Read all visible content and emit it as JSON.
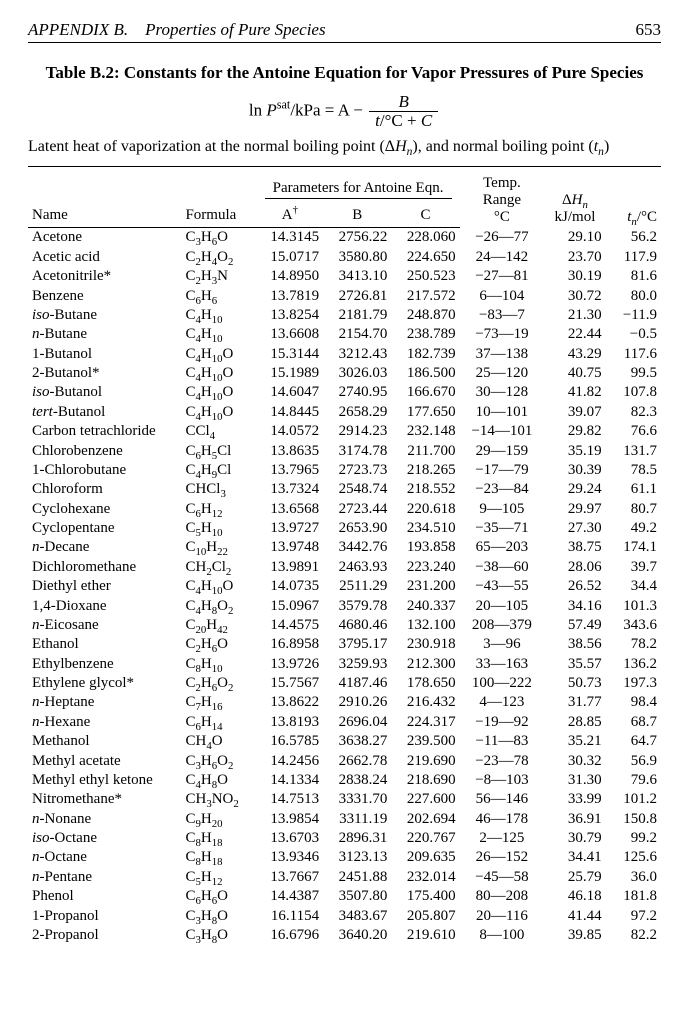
{
  "page": {
    "running_head_left": "APPENDIX B. Properties of Pure Species",
    "page_number": "653"
  },
  "table": {
    "title": "Table B.2: Constants for the Antoine Equation for Vapor Pressures of Pure Species",
    "equation_html": "ln <span class='ital'>P</span><sup>sat</sup>/kPa = A &minus; <span class='frac'><span class='num'><span class='ital'>B</span></span><span class='den'><span class='ital'>t</span>/&deg;C + <span class='ital'>C</span></span></span>",
    "preline_html": "Latent heat of vaporization at the normal boiling point (&Delta;<span class='ital'>H</span><sub><span class='ital'>n</span></sub>), and normal boiling point (<span class='ital'>t</span><sub><span class='ital'>n</span></sub>)",
    "group_header": "Parameters for Antoine Eqn.",
    "columns": {
      "name": "Name",
      "formula": "Formula",
      "A_html": "A<sup>&dagger;</sup>",
      "B": "B",
      "C": "C",
      "range_html": "Temp. Range<br>&deg;C",
      "dH_html": "&Delta;<span class='ital'>H</span><sub><span class='ital'>n</span></sub><br>kJ/mol",
      "tn_html": "<span class='ital'>t</span><sub><span class='ital'>n</span></sub>/&deg;C"
    },
    "rows": [
      {
        "name": "Acetone",
        "formula_html": "C<sub>3</sub>H<sub>6</sub>O",
        "A": "14.3145",
        "B": "2756.22",
        "C": "228.060",
        "range": "−26—77",
        "dH": "29.10",
        "tn": "56.2"
      },
      {
        "name": "Acetic acid",
        "formula_html": "C<sub>2</sub>H<sub>4</sub>O<sub>2</sub>",
        "A": "15.0717",
        "B": "3580.80",
        "C": "224.650",
        "range": "24—142",
        "dH": "23.70",
        "tn": "117.9"
      },
      {
        "name": "Acetonitrile*",
        "formula_html": "C<sub>2</sub>H<sub>3</sub>N",
        "A": "14.8950",
        "B": "3413.10",
        "C": "250.523",
        "range": "−27—81",
        "dH": "30.19",
        "tn": "81.6"
      },
      {
        "name": "Benzene",
        "formula_html": "C<sub>6</sub>H<sub>6</sub>",
        "A": "13.7819",
        "B": "2726.81",
        "C": "217.572",
        "range": "6—104",
        "dH": "30.72",
        "tn": "80.0"
      },
      {
        "name_html": "<span class='ital'>iso</span>-Butane",
        "formula_html": "C<sub>4</sub>H<sub>10</sub>",
        "A": "13.8254",
        "B": "2181.79",
        "C": "248.870",
        "range": "−83—7",
        "dH": "21.30",
        "tn": "−11.9"
      },
      {
        "name_html": "<span class='ital'>n</span>-Butane",
        "formula_html": "C<sub>4</sub>H<sub>10</sub>",
        "A": "13.6608",
        "B": "2154.70",
        "C": "238.789",
        "range": "−73—19",
        "dH": "22.44",
        "tn": "−0.5"
      },
      {
        "name": "1-Butanol",
        "formula_html": "C<sub>4</sub>H<sub>10</sub>O",
        "A": "15.3144",
        "B": "3212.43",
        "C": "182.739",
        "range": "37—138",
        "dH": "43.29",
        "tn": "117.6"
      },
      {
        "name": "2-Butanol*",
        "formula_html": "C<sub>4</sub>H<sub>10</sub>O",
        "A": "15.1989",
        "B": "3026.03",
        "C": "186.500",
        "range": "25—120",
        "dH": "40.75",
        "tn": "99.5"
      },
      {
        "name_html": "<span class='ital'>iso</span>-Butanol",
        "formula_html": "C<sub>4</sub>H<sub>10</sub>O",
        "A": "14.6047",
        "B": "2740.95",
        "C": "166.670",
        "range": "30—128",
        "dH": "41.82",
        "tn": "107.8"
      },
      {
        "name_html": "<span class='ital'>tert</span>-Butanol",
        "formula_html": "C<sub>4</sub>H<sub>10</sub>O",
        "A": "14.8445",
        "B": "2658.29",
        "C": "177.650",
        "range": "10—101",
        "dH": "39.07",
        "tn": "82.3"
      },
      {
        "name": "Carbon tetrachloride",
        "formula_html": "CCl<sub>4</sub>",
        "A": "14.0572",
        "B": "2914.23",
        "C": "232.148",
        "range": "−14—101",
        "dH": "29.82",
        "tn": "76.6"
      },
      {
        "name": "Chlorobenzene",
        "formula_html": "C<sub>6</sub>H<sub>5</sub>Cl",
        "A": "13.8635",
        "B": "3174.78",
        "C": "211.700",
        "range": "29—159",
        "dH": "35.19",
        "tn": "131.7"
      },
      {
        "name": "1-Chlorobutane",
        "formula_html": "C<sub>4</sub>H<sub>9</sub>Cl",
        "A": "13.7965",
        "B": "2723.73",
        "C": "218.265",
        "range": "−17—79",
        "dH": "30.39",
        "tn": "78.5"
      },
      {
        "name": "Chloroform",
        "formula_html": "CHCl<sub>3</sub>",
        "A": "13.7324",
        "B": "2548.74",
        "C": "218.552",
        "range": "−23—84",
        "dH": "29.24",
        "tn": "61.1"
      },
      {
        "name": "Cyclohexane",
        "formula_html": "C<sub>6</sub>H<sub>12</sub>",
        "A": "13.6568",
        "B": "2723.44",
        "C": "220.618",
        "range": "9—105",
        "dH": "29.97",
        "tn": "80.7"
      },
      {
        "name": "Cyclopentane",
        "formula_html": "C<sub>5</sub>H<sub>10</sub>",
        "A": "13.9727",
        "B": "2653.90",
        "C": "234.510",
        "range": "−35—71",
        "dH": "27.30",
        "tn": "49.2"
      },
      {
        "name_html": "<span class='ital'>n</span>-Decane",
        "formula_html": "C<sub>10</sub>H<sub>22</sub>",
        "A": "13.9748",
        "B": "3442.76",
        "C": "193.858",
        "range": "65—203",
        "dH": "38.75",
        "tn": "174.1"
      },
      {
        "name": "Dichloromethane",
        "formula_html": "CH<sub>2</sub>Cl<sub>2</sub>",
        "A": "13.9891",
        "B": "2463.93",
        "C": "223.240",
        "range": "−38—60",
        "dH": "28.06",
        "tn": "39.7"
      },
      {
        "name": "Diethyl ether",
        "formula_html": "C<sub>4</sub>H<sub>10</sub>O",
        "A": "14.0735",
        "B": "2511.29",
        "C": "231.200",
        "range": "−43—55",
        "dH": "26.52",
        "tn": "34.4"
      },
      {
        "name": "1,4-Dioxane",
        "formula_html": "C<sub>4</sub>H<sub>8</sub>O<sub>2</sub>",
        "A": "15.0967",
        "B": "3579.78",
        "C": "240.337",
        "range": "20—105",
        "dH": "34.16",
        "tn": "101.3"
      },
      {
        "name_html": "<span class='ital'>n</span>-Eicosane",
        "formula_html": "C<sub>20</sub>H<sub>42</sub>",
        "A": "14.4575",
        "B": "4680.46",
        "C": "132.100",
        "range": "208—379",
        "dH": "57.49",
        "tn": "343.6"
      },
      {
        "name": "Ethanol",
        "formula_html": "C<sub>2</sub>H<sub>6</sub>O",
        "A": "16.8958",
        "B": "3795.17",
        "C": "230.918",
        "range": "3—96",
        "dH": "38.56",
        "tn": "78.2"
      },
      {
        "name": "Ethylbenzene",
        "formula_html": "C<sub>8</sub>H<sub>10</sub>",
        "A": "13.9726",
        "B": "3259.93",
        "C": "212.300",
        "range": "33—163",
        "dH": "35.57",
        "tn": "136.2"
      },
      {
        "name": "Ethylene glycol*",
        "formula_html": "C<sub>2</sub>H<sub>6</sub>O<sub>2</sub>",
        "A": "15.7567",
        "B": "4187.46",
        "C": "178.650",
        "range": "100—222",
        "dH": "50.73",
        "tn": "197.3"
      },
      {
        "name_html": "<span class='ital'>n</span>-Heptane",
        "formula_html": "C<sub>7</sub>H<sub>16</sub>",
        "A": "13.8622",
        "B": "2910.26",
        "C": "216.432",
        "range": "4—123",
        "dH": "31.77",
        "tn": "98.4"
      },
      {
        "name_html": "<span class='ital'>n</span>-Hexane",
        "formula_html": "C<sub>6</sub>H<sub>14</sub>",
        "A": "13.8193",
        "B": "2696.04",
        "C": "224.317",
        "range": "−19—92",
        "dH": "28.85",
        "tn": "68.7"
      },
      {
        "name": "Methanol",
        "formula_html": "CH<sub>4</sub>O",
        "A": "16.5785",
        "B": "3638.27",
        "C": "239.500",
        "range": "−11—83",
        "dH": "35.21",
        "tn": "64.7"
      },
      {
        "name": "Methyl acetate",
        "formula_html": "C<sub>3</sub>H<sub>6</sub>O<sub>2</sub>",
        "A": "14.2456",
        "B": "2662.78",
        "C": "219.690",
        "range": "−23—78",
        "dH": "30.32",
        "tn": "56.9"
      },
      {
        "name": "Methyl ethyl ketone",
        "formula_html": "C<sub>4</sub>H<sub>8</sub>O",
        "A": "14.1334",
        "B": "2838.24",
        "C": "218.690",
        "range": "−8—103",
        "dH": "31.30",
        "tn": "79.6"
      },
      {
        "name": "Nitromethane*",
        "formula_html": "CH<sub>3</sub>NO<sub>2</sub>",
        "A": "14.7513",
        "B": "3331.70",
        "C": "227.600",
        "range": "56—146",
        "dH": "33.99",
        "tn": "101.2"
      },
      {
        "name_html": "<span class='ital'>n</span>-Nonane",
        "formula_html": "C<sub>9</sub>H<sub>20</sub>",
        "A": "13.9854",
        "B": "3311.19",
        "C": "202.694",
        "range": "46—178",
        "dH": "36.91",
        "tn": "150.8"
      },
      {
        "name_html": "<span class='ital'>iso</span>-Octane",
        "formula_html": "C<sub>8</sub>H<sub>18</sub>",
        "A": "13.6703",
        "B": "2896.31",
        "C": "220.767",
        "range": "2—125",
        "dH": "30.79",
        "tn": "99.2"
      },
      {
        "name_html": "<span class='ital'>n</span>-Octane",
        "formula_html": "C<sub>8</sub>H<sub>18</sub>",
        "A": "13.9346",
        "B": "3123.13",
        "C": "209.635",
        "range": "26—152",
        "dH": "34.41",
        "tn": "125.6"
      },
      {
        "name_html": "<span class='ital'>n</span>-Pentane",
        "formula_html": "C<sub>5</sub>H<sub>12</sub>",
        "A": "13.7667",
        "B": "2451.88",
        "C": "232.014",
        "range": "−45—58",
        "dH": "25.79",
        "tn": "36.0"
      },
      {
        "name": "Phenol",
        "formula_html": "C<sub>6</sub>H<sub>6</sub>O",
        "A": "14.4387",
        "B": "3507.80",
        "C": "175.400",
        "range": "80—208",
        "dH": "46.18",
        "tn": "181.8"
      },
      {
        "name": "1-Propanol",
        "formula_html": "C<sub>3</sub>H<sub>8</sub>O",
        "A": "16.1154",
        "B": "3483.67",
        "C": "205.807",
        "range": "20—116",
        "dH": "41.44",
        "tn": "97.2"
      },
      {
        "name": "2-Propanol",
        "formula_html": "C<sub>3</sub>H<sub>8</sub>O",
        "A": "16.6796",
        "B": "3640.20",
        "C": "219.610",
        "range": "8—100",
        "dH": "39.85",
        "tn": "82.2"
      }
    ]
  }
}
